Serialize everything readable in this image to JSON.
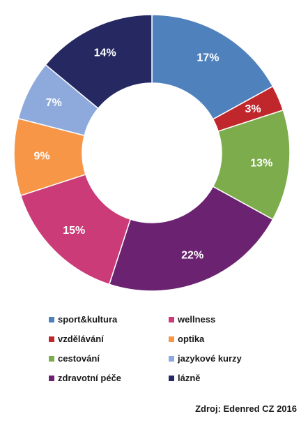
{
  "chart_data": {
    "type": "pie",
    "donut": true,
    "categories": [
      "sport&kultura",
      "vzdělávání",
      "cestování",
      "zdravotní péče",
      "wellness",
      "optika",
      "jazykové kurzy",
      "lázně"
    ],
    "values": [
      17,
      3,
      13,
      22,
      15,
      9,
      7,
      14
    ],
    "labels": [
      "17%",
      "3%",
      "13%",
      "22%",
      "15%",
      "9%",
      "7%",
      "14%"
    ],
    "colors": [
      "#4f81bd",
      "#c0272d",
      "#7dac4c",
      "#6b2271",
      "#cb3b78",
      "#f79646",
      "#8ea9db",
      "#262861"
    ],
    "legend_position": "bottom"
  },
  "source": "Zdroj: Edenred CZ 2016"
}
